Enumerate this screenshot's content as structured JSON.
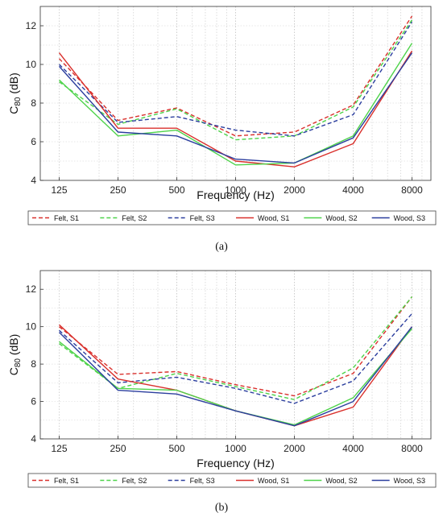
{
  "chart_data": [
    {
      "type": "line",
      "caption": "(a)",
      "xlabel": "Frequency (Hz)",
      "ylabel_main": "C",
      "ylabel_sub": "80",
      "ylabel_unit": " (dB)",
      "x": [
        125,
        250,
        500,
        1000,
        2000,
        4000,
        8000
      ],
      "x_tick_labels": [
        "125",
        "250",
        "500",
        "1000",
        "2000",
        "4000",
        "8000"
      ],
      "y_ticks": [
        4,
        6,
        8,
        10,
        12
      ],
      "y_tick_labels": [
        "4",
        "6",
        "8",
        "10",
        "12"
      ],
      "ylim": [
        4,
        13
      ],
      "xscale": "log",
      "grid": true,
      "legend_position": "bottom",
      "series": [
        {
          "name": "Felt, S1",
          "color": "#d9302c",
          "dash": true,
          "values": [
            10.3,
            7.1,
            7.75,
            6.3,
            6.5,
            7.9,
            12.5
          ]
        },
        {
          "name": "Felt, S2",
          "color": "#4ed34a",
          "dash": true,
          "values": [
            9.1,
            6.9,
            7.7,
            6.1,
            6.3,
            7.8,
            12.3
          ]
        },
        {
          "name": "Felt, S3",
          "color": "#2b3e9e",
          "dash": true,
          "values": [
            10.0,
            7.0,
            7.3,
            6.6,
            6.3,
            7.4,
            12.2
          ]
        },
        {
          "name": "Wood, S1",
          "color": "#d9302c",
          "dash": false,
          "values": [
            10.6,
            6.7,
            6.7,
            5.0,
            4.7,
            5.9,
            10.7
          ]
        },
        {
          "name": "Wood, S2",
          "color": "#4ed34a",
          "dash": false,
          "values": [
            9.2,
            6.3,
            6.6,
            4.8,
            4.9,
            6.3,
            11.1
          ]
        },
        {
          "name": "Wood, S3",
          "color": "#2b3e9e",
          "dash": false,
          "values": [
            9.9,
            6.5,
            6.3,
            5.1,
            4.9,
            6.2,
            10.6
          ]
        }
      ]
    },
    {
      "type": "line",
      "caption": "(b)",
      "xlabel": "Frequency (Hz)",
      "ylabel_main": "C",
      "ylabel_sub": "80",
      "ylabel_unit": " (dB)",
      "x": [
        125,
        250,
        500,
        1000,
        2000,
        4000,
        8000
      ],
      "x_tick_labels": [
        "125",
        "250",
        "500",
        "1000",
        "2000",
        "4000",
        "8000"
      ],
      "y_ticks": [
        4,
        6,
        8,
        10,
        12
      ],
      "y_tick_labels": [
        "4",
        "6",
        "8",
        "10",
        "12"
      ],
      "ylim": [
        4,
        13
      ],
      "xscale": "log",
      "grid": true,
      "legend_position": "bottom",
      "series": [
        {
          "name": "Felt, S1",
          "color": "#d9302c",
          "dash": true,
          "values": [
            10.0,
            7.45,
            7.6,
            6.9,
            6.3,
            7.5,
            11.6
          ]
        },
        {
          "name": "Felt, S2",
          "color": "#4ed34a",
          "dash": true,
          "values": [
            9.1,
            6.7,
            7.5,
            6.8,
            6.1,
            7.8,
            11.6
          ]
        },
        {
          "name": "Felt, S3",
          "color": "#2b3e9e",
          "dash": true,
          "values": [
            9.8,
            7.0,
            7.3,
            6.7,
            5.9,
            7.1,
            10.7
          ]
        },
        {
          "name": "Wood, S1",
          "color": "#d9302c",
          "dash": false,
          "values": [
            10.1,
            7.2,
            6.6,
            5.5,
            4.7,
            5.7,
            10.0
          ]
        },
        {
          "name": "Wood, S2",
          "color": "#4ed34a",
          "dash": false,
          "values": [
            9.2,
            6.7,
            6.6,
            5.5,
            4.75,
            6.2,
            9.9
          ]
        },
        {
          "name": "Wood, S3",
          "color": "#2b3e9e",
          "dash": false,
          "values": [
            9.7,
            6.6,
            6.4,
            5.5,
            4.7,
            6.0,
            10.0
          ]
        }
      ]
    }
  ]
}
